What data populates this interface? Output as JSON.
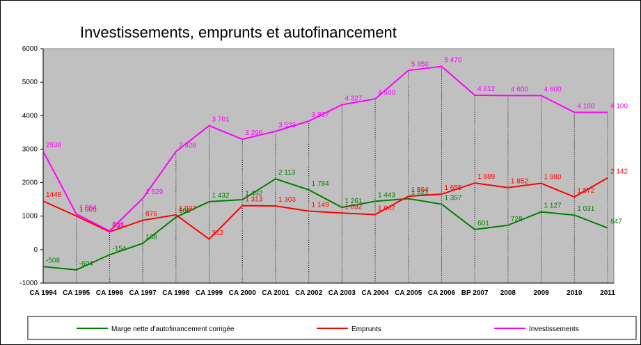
{
  "chart_data": {
    "type": "line",
    "title": "Investissements, emprunts et autofinancement",
    "categories": [
      "CA 1994",
      "CA 1995",
      "CA 1996",
      "CA 1997",
      "CA 1998",
      "CA 1999",
      "CA 2000",
      "CA 2001",
      "CA 2002",
      "CA 2003",
      "CA 2004",
      "CA 2005",
      "CA 2006",
      "BP 2007",
      "2008",
      "2009",
      "2010",
      "2011"
    ],
    "series": [
      {
        "name": "Marge nette d'autofinancement corrigée",
        "color": "#008000",
        "values": [
          -508,
          -604,
          -154,
          188,
          969,
          1432,
          1492,
          2113,
          1784,
          1261,
          1443,
          1521,
          1357,
          601,
          728,
          1127,
          1031,
          647
        ],
        "value_labels": [
          "-508",
          "-604",
          "-154",
          "188",
          "969",
          "1 432",
          "1 492",
          "2 113",
          "1 784",
          "1 261",
          "1 443",
          "1 521",
          "1 357",
          "601",
          "728",
          "1 127",
          "1 031",
          "647"
        ]
      },
      {
        "name": "Emprunts",
        "color": "#ff0000",
        "values": [
          1448,
          1005,
          531,
          876,
          1037,
          312,
          1313,
          1303,
          1149,
          1092,
          1047,
          1594,
          1655,
          1989,
          1852,
          1980,
          1572,
          2142
        ],
        "value_labels": [
          "1448",
          "1 005",
          "531",
          "876",
          "1 037",
          "312",
          "1 313",
          "1 303",
          "1 149",
          "1 092",
          "1 047",
          "1 594",
          "1 655",
          "1 989",
          "1 852",
          "1 980",
          "1 572",
          "2 142"
        ]
      },
      {
        "name": "Investissements",
        "color": "#ff00ff",
        "values": [
          2938,
          1064,
          558,
          1529,
          2928,
          3701,
          3296,
          3533,
          3837,
          4327,
          4500,
          5350,
          5470,
          4612,
          4600,
          4600,
          4100,
          4100
        ],
        "value_labels": [
          "2938",
          "1 064",
          "558",
          "1 529",
          "2 928",
          "3 701",
          "3 296",
          "3 533",
          "3 837",
          "4 327",
          "4 500",
          "5 350",
          "5 470",
          "4 612",
          "4 600",
          "4 600",
          "4 100",
          "4 100"
        ]
      }
    ],
    "ylim": [
      -1000,
      6000
    ],
    "yticks": [
      -1000,
      0,
      1000,
      2000,
      3000,
      4000,
      5000,
      6000
    ],
    "plot_background": "#c0c0c0"
  }
}
